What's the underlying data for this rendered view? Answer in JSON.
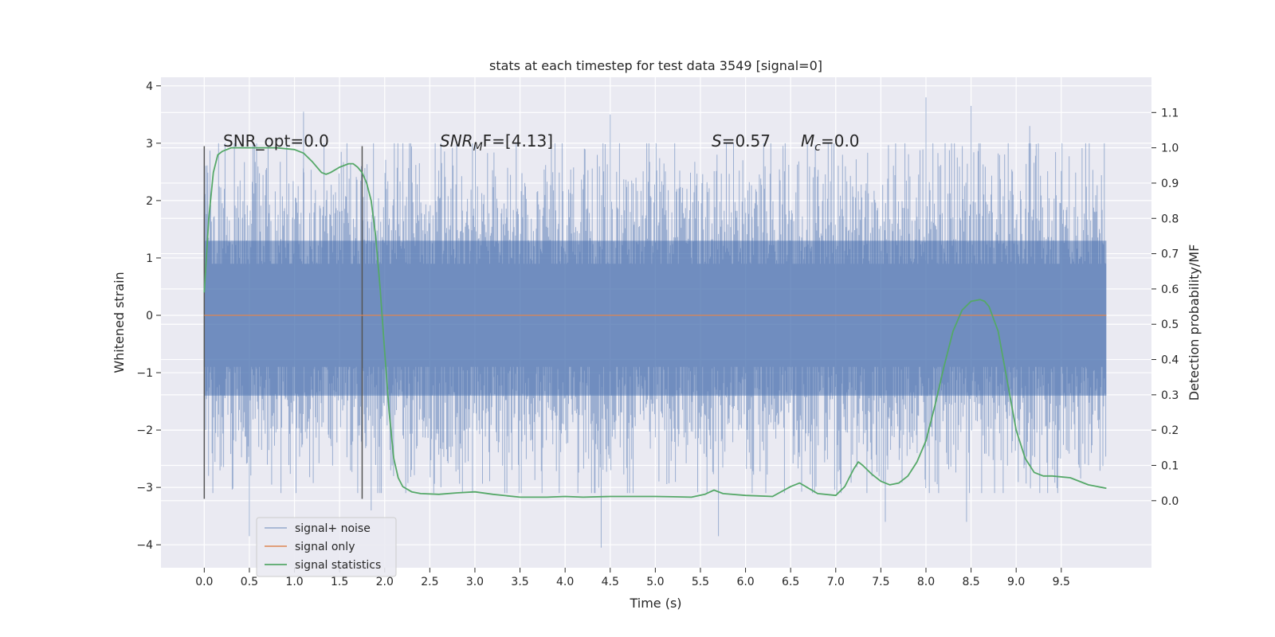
{
  "chart_data": {
    "type": "line",
    "title": "stats at each timestep for test data 3549 [signal=0]",
    "xlabel": "Time (s)",
    "ylabel": "Whitened strain",
    "y2label": "Detection probability/MF",
    "xlim": [
      -0.48,
      10.5
    ],
    "ylim": [
      -4.4,
      4.15
    ],
    "y2lim": [
      -0.19,
      1.2
    ],
    "x_ticks": [
      0.0,
      0.5,
      1.0,
      1.5,
      2.0,
      2.5,
      3.0,
      3.5,
      4.0,
      4.5,
      5.0,
      5.5,
      6.0,
      6.5,
      7.0,
      7.5,
      8.0,
      8.5,
      9.0,
      9.5
    ],
    "x_tick_labels": [
      "0.0",
      "0.5",
      "1.0",
      "1.5",
      "2.0",
      "2.5",
      "3.0",
      "3.5",
      "4.0",
      "4.5",
      "5.0",
      "5.5",
      "6.0",
      "6.5",
      "7.0",
      "7.5",
      "8.0",
      "8.5",
      "9.0",
      "9.5"
    ],
    "y_ticks": [
      -4,
      -3,
      -2,
      -1,
      0,
      1,
      2,
      3,
      4
    ],
    "y_tick_labels": [
      "−4",
      "−3",
      "−2",
      "−1",
      "0",
      "1",
      "2",
      "3",
      "4"
    ],
    "y2_ticks": [
      0.0,
      0.1,
      0.2,
      0.3,
      0.4,
      0.5,
      0.6,
      0.7,
      0.8,
      0.9,
      1.0,
      1.1
    ],
    "y2_tick_labels": [
      "0.0",
      "0.1",
      "0.2",
      "0.3",
      "0.4",
      "0.5",
      "0.6",
      "0.7",
      "0.8",
      "0.9",
      "1.0",
      "1.1"
    ],
    "grid": true,
    "legend_position": "lower-left",
    "annotations": {
      "snr_opt": "SNR_opt=0.0",
      "snr_mf_prefix": "SNR",
      "snr_mf_sub": "M",
      "snr_mf_suffix": "F=[4.13]",
      "s_prefix": "S",
      "s_value": "=0.57",
      "mc_prefix": "M",
      "mc_sub": "c",
      "mc_value": "=0.0"
    },
    "vertical_lines": [
      {
        "x": 0.0,
        "y_range": [
          -3.2,
          2.95
        ]
      },
      {
        "x": 1.75,
        "y_range": [
          -3.2,
          2.95
        ]
      }
    ],
    "series": [
      {
        "name": "signal+ noise",
        "axis": "left",
        "kind": "noise",
        "color": "#4c72b0",
        "x_range": [
          0.0,
          10.0
        ],
        "typical_envelope": [
          -1.4,
          1.3
        ],
        "extremes": [
          {
            "x": 0.5,
            "y": -3.85
          },
          {
            "x": 1.1,
            "y": 3.55
          },
          {
            "x": 1.85,
            "y": -3.4
          },
          {
            "x": 4.4,
            "y": -4.05
          },
          {
            "x": 5.7,
            "y": -3.85
          },
          {
            "x": 7.55,
            "y": -3.6
          },
          {
            "x": 8.0,
            "y": 3.8
          },
          {
            "x": 8.5,
            "y": 3.65
          },
          {
            "x": 4.5,
            "y": 3.5
          },
          {
            "x": 8.45,
            "y": -3.6
          },
          {
            "x": 9.15,
            "y": 3.3
          }
        ]
      },
      {
        "name": "signal only",
        "axis": "left",
        "kind": "line",
        "color": "#dd8452",
        "x": [
          0.0,
          10.0
        ],
        "y": [
          0.0,
          0.0
        ]
      },
      {
        "name": "signal statistics",
        "axis": "right",
        "kind": "line",
        "color": "#55a868",
        "x": [
          0.0,
          0.05,
          0.1,
          0.15,
          0.2,
          0.3,
          0.5,
          0.8,
          1.0,
          1.1,
          1.2,
          1.3,
          1.35,
          1.4,
          1.5,
          1.6,
          1.65,
          1.7,
          1.75,
          1.8,
          1.85,
          1.9,
          1.95,
          2.0,
          2.05,
          2.1,
          2.15,
          2.2,
          2.3,
          2.4,
          2.6,
          2.8,
          3.0,
          3.2,
          3.5,
          3.8,
          4.0,
          4.2,
          4.5,
          4.8,
          5.0,
          5.2,
          5.4,
          5.55,
          5.65,
          5.75,
          6.0,
          6.3,
          6.5,
          6.6,
          6.8,
          7.0,
          7.1,
          7.2,
          7.25,
          7.3,
          7.4,
          7.5,
          7.6,
          7.7,
          7.8,
          7.9,
          8.0,
          8.1,
          8.2,
          8.3,
          8.4,
          8.5,
          8.6,
          8.65,
          8.7,
          8.8,
          8.9,
          9.0,
          9.1,
          9.2,
          9.3,
          9.4,
          9.6,
          9.8,
          10.0
        ],
        "y": [
          0.59,
          0.8,
          0.93,
          0.98,
          0.99,
          1.0,
          1.0,
          1.0,
          0.995,
          0.985,
          0.96,
          0.93,
          0.925,
          0.93,
          0.945,
          0.955,
          0.955,
          0.945,
          0.93,
          0.9,
          0.85,
          0.75,
          0.6,
          0.42,
          0.25,
          0.12,
          0.065,
          0.04,
          0.025,
          0.02,
          0.018,
          0.022,
          0.025,
          0.018,
          0.01,
          0.01,
          0.012,
          0.01,
          0.012,
          0.012,
          0.012,
          0.011,
          0.01,
          0.018,
          0.03,
          0.02,
          0.015,
          0.012,
          0.04,
          0.05,
          0.02,
          0.015,
          0.04,
          0.09,
          0.11,
          0.1,
          0.075,
          0.055,
          0.045,
          0.05,
          0.07,
          0.11,
          0.17,
          0.27,
          0.38,
          0.48,
          0.54,
          0.565,
          0.57,
          0.565,
          0.55,
          0.48,
          0.34,
          0.2,
          0.12,
          0.08,
          0.07,
          0.07,
          0.065,
          0.045,
          0.035
        ]
      }
    ]
  }
}
